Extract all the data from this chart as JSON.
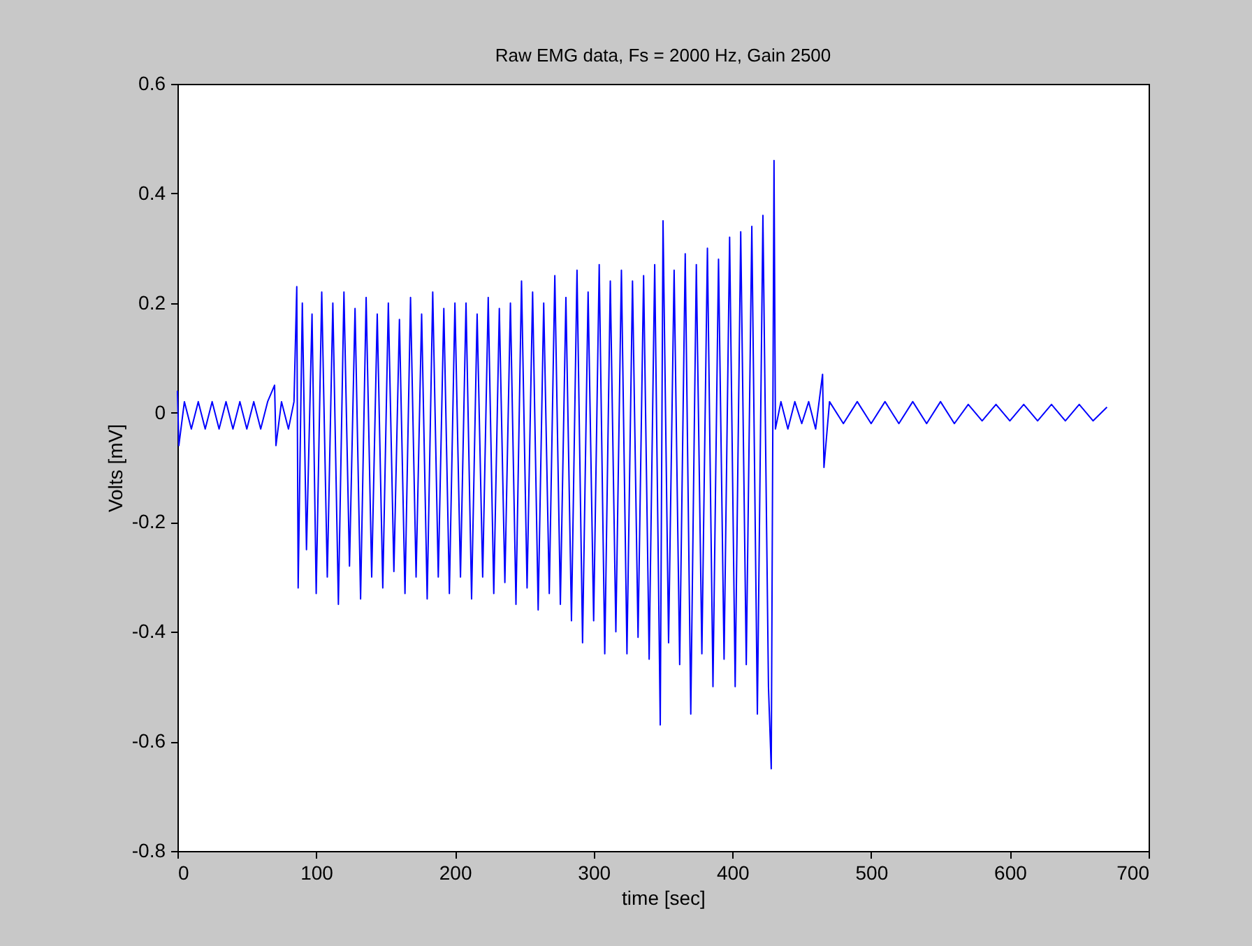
{
  "chart_data": {
    "type": "line",
    "title": "Raw EMG data, Fs = 2000 Hz, Gain 2500",
    "xlabel": "time [sec]",
    "ylabel": "Volts [mV]",
    "x": [
      0,
      1,
      5,
      10,
      15,
      20,
      25,
      30,
      35,
      40,
      45,
      50,
      55,
      60,
      65,
      70,
      71,
      75,
      80,
      84,
      86,
      87,
      90,
      93,
      97,
      100,
      104,
      108,
      112,
      116,
      120,
      124,
      128,
      132,
      136,
      140,
      144,
      148,
      152,
      156,
      160,
      164,
      168,
      172,
      176,
      180,
      184,
      188,
      192,
      196,
      200,
      204,
      208,
      212,
      216,
      220,
      224,
      228,
      232,
      236,
      240,
      244,
      248,
      252,
      256,
      260,
      264,
      268,
      272,
      276,
      280,
      284,
      288,
      292,
      296,
      300,
      304,
      308,
      312,
      316,
      320,
      324,
      328,
      332,
      336,
      340,
      344,
      348,
      350,
      354,
      358,
      362,
      366,
      370,
      374,
      378,
      382,
      386,
      390,
      394,
      398,
      402,
      406,
      410,
      414,
      418,
      422,
      426,
      428,
      430,
      431,
      435,
      440,
      445,
      450,
      455,
      460,
      465,
      466,
      470,
      480,
      490,
      500,
      510,
      520,
      530,
      540,
      550,
      560,
      570,
      580,
      590,
      600,
      610,
      620,
      630,
      640,
      650,
      660,
      670
    ],
    "series": [
      {
        "color": "#0000ff",
        "values": [
          0.04,
          -0.06,
          0.02,
          -0.03,
          0.02,
          -0.03,
          0.02,
          -0.03,
          0.02,
          -0.03,
          0.02,
          -0.03,
          0.02,
          -0.03,
          0.02,
          0.05,
          -0.06,
          0.02,
          -0.03,
          0.02,
          0.23,
          -0.32,
          0.2,
          -0.25,
          0.18,
          -0.33,
          0.22,
          -0.3,
          0.2,
          -0.35,
          0.22,
          -0.28,
          0.19,
          -0.34,
          0.21,
          -0.3,
          0.18,
          -0.32,
          0.2,
          -0.29,
          0.17,
          -0.33,
          0.21,
          -0.3,
          0.18,
          -0.34,
          0.22,
          -0.3,
          0.19,
          -0.33,
          0.2,
          -0.3,
          0.2,
          -0.34,
          0.18,
          -0.3,
          0.21,
          -0.33,
          0.19,
          -0.31,
          0.2,
          -0.35,
          0.24,
          -0.32,
          0.22,
          -0.36,
          0.2,
          -0.33,
          0.25,
          -0.35,
          0.21,
          -0.38,
          0.26,
          -0.42,
          0.22,
          -0.38,
          0.27,
          -0.44,
          0.24,
          -0.4,
          0.26,
          -0.44,
          0.24,
          -0.41,
          0.25,
          -0.45,
          0.27,
          -0.57,
          0.35,
          -0.42,
          0.26,
          -0.46,
          0.29,
          -0.55,
          0.27,
          -0.44,
          0.3,
          -0.5,
          0.28,
          -0.45,
          0.32,
          -0.5,
          0.33,
          -0.46,
          0.34,
          -0.55,
          0.36,
          -0.5,
          -0.65,
          0.46,
          -0.03,
          0.02,
          -0.03,
          0.02,
          -0.02,
          0.02,
          -0.03,
          0.07,
          -0.1,
          0.02,
          -0.02,
          0.02,
          -0.02,
          0.02,
          -0.02,
          0.02,
          -0.02,
          0.02,
          -0.02,
          0.015,
          -0.015,
          0.015,
          -0.015,
          0.015,
          -0.015,
          0.015,
          -0.015,
          0.015,
          -0.015,
          0.01
        ]
      }
    ],
    "xlim": [
      0,
      700
    ],
    "xticks": [
      0,
      100,
      200,
      300,
      400,
      500,
      600,
      700
    ],
    "ylim": [
      -0.8,
      0.6
    ],
    "yticks": [
      -0.8,
      -0.6,
      -0.4,
      -0.2,
      0,
      0.2,
      0.4,
      0.6
    ],
    "grid": false,
    "marker": "none",
    "line_style": "solid"
  }
}
